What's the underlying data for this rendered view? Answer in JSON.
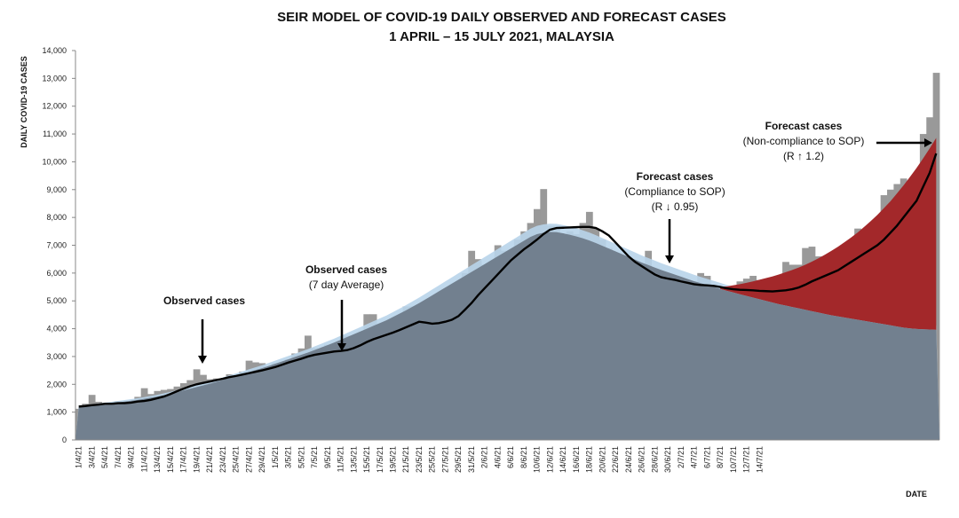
{
  "chart_data": {
    "type": "bar",
    "title": "SEIR MODEL OF COVID-19 DAILY OBSERVED AND FORECAST CASES",
    "subtitle": "1 APRIL – 15 JULY 2021, MALAYSIA",
    "ylabel": "DAILY COVID-19 CASES",
    "xlabel": "DATE",
    "ylim": [
      0,
      14000
    ],
    "grid": false,
    "yticks": [
      "0",
      "1,000",
      "2,000",
      "3,000",
      "4,000",
      "5,000",
      "6,000",
      "7,000",
      "8,000",
      "9,000",
      "10,000",
      "11,000",
      "12,000",
      "13,000",
      "14,000"
    ],
    "xticks": [
      "1/4/21",
      "3/4/21",
      "5/4/21",
      "7/4/21",
      "9/4/21",
      "11/4/21",
      "13/4/21",
      "15/4/21",
      "17/4/21",
      "19/4/21",
      "21/4/21",
      "23/4/21",
      "25/4/21",
      "27/4/21",
      "29/4/21",
      "1/5/21",
      "3/5/21",
      "5/5/21",
      "7/5/21",
      "9/5/21",
      "11/5/21",
      "13/5/21",
      "15/5/21",
      "17/5/21",
      "19/5/21",
      "21/5/21",
      "23/5/21",
      "25/5/21",
      "27/5/21",
      "29/5/21",
      "31/5/21",
      "2/6/21",
      "4/6/21",
      "6/6/21",
      "8/6/21",
      "10/6/21",
      "12/6/21",
      "14/6/21",
      "16/6/21",
      "18/6/21",
      "20/6/21",
      "22/6/21",
      "24/6/21",
      "26/6/21",
      "28/6/21",
      "30/6/21",
      "2/7/21",
      "4/7/21",
      "6/7/21",
      "8/7/21",
      "10/7/21",
      "12/7/21",
      "14/7/21"
    ],
    "series": [
      {
        "name": "Observed cases",
        "values": [
          1120,
          1300,
          1620,
          1370,
          1230,
          1100,
          1390,
          1150,
          1390,
          1550,
          1860,
          1650,
          1760,
          1800,
          1830,
          1920,
          2040,
          2150,
          2540,
          2340,
          2180,
          2210,
          2110,
          2360,
          2340,
          2460,
          2850,
          2790,
          2760,
          2550,
          2760,
          2650,
          2900,
          3110,
          3290,
          3750,
          3300,
          2990,
          3420,
          2500,
          3190,
          3750,
          3550,
          3550,
          4520,
          4520,
          3750,
          3800,
          3800,
          4050,
          4800,
          4800,
          4700,
          4100,
          4100,
          3760,
          4400,
          4800,
          5200,
          6000,
          6800,
          6500,
          6300,
          6400,
          7000,
          6800,
          6800,
          7200,
          7500,
          7800,
          8300,
          9020,
          7700,
          7700,
          7100,
          7500,
          7400,
          7800,
          8200,
          7600,
          7200,
          6900,
          6200,
          5250,
          5600,
          6100,
          5700,
          6800,
          5800,
          5300,
          4900,
          5450,
          5300,
          5150,
          5700,
          6000,
          5900,
          5500,
          5200,
          4600,
          4800,
          5700,
          5800,
          5900,
          5750,
          5600,
          5350,
          5400,
          6400,
          6300,
          6300,
          6900,
          6950,
          6600,
          6300,
          6000,
          6300,
          6400,
          6800,
          7600,
          7300,
          6700,
          7200,
          8800,
          9000,
          9200,
          9400,
          9100,
          8600,
          11000,
          11600,
          13200
        ]
      },
      {
        "name": "Observed cases (7 day Average)",
        "values": [
          1200,
          1220,
          1250,
          1270,
          1300,
          1300,
          1320,
          1320,
          1340,
          1380,
          1400,
          1440,
          1500,
          1560,
          1650,
          1750,
          1840,
          1930,
          2000,
          2050,
          2100,
          2150,
          2200,
          2260,
          2300,
          2350,
          2400,
          2450,
          2500,
          2560,
          2620,
          2700,
          2780,
          2850,
          2920,
          3000,
          3060,
          3100,
          3140,
          3180,
          3200,
          3230,
          3300,
          3400,
          3520,
          3620,
          3700,
          3780,
          3860,
          3950,
          4050,
          4150,
          4250,
          4220,
          4180,
          4200,
          4250,
          4320,
          4450,
          4680,
          4920,
          5200,
          5450,
          5700,
          5950,
          6200,
          6450,
          6650,
          6850,
          7020,
          7200,
          7400,
          7560,
          7620,
          7630,
          7640,
          7650,
          7660,
          7660,
          7620,
          7500,
          7350,
          7100,
          6850,
          6600,
          6400,
          6250,
          6100,
          5950,
          5850,
          5800,
          5760,
          5700,
          5650,
          5600,
          5570,
          5560,
          5540,
          5500,
          5450,
          5420,
          5400,
          5390,
          5380,
          5360,
          5350,
          5340,
          5360,
          5380,
          5420,
          5480,
          5580,
          5700,
          5800,
          5900,
          6000,
          6100,
          6250,
          6400,
          6550,
          6700,
          6850,
          7000,
          7200,
          7450,
          7700,
          8000,
          8300,
          8600,
          9100,
          9600,
          10300
        ]
      },
      {
        "name": "Forecast cases (Compliance to SOP)",
        "values": [
          1180,
          1200,
          1230,
          1260,
          1290,
          1320,
          1350,
          1380,
          1410,
          1440,
          1480,
          1520,
          1560,
          1610,
          1660,
          1720,
          1780,
          1840,
          1900,
          1960,
          2020,
          2090,
          2160,
          2230,
          2300,
          2370,
          2440,
          2510,
          2580,
          2660,
          2740,
          2820,
          2900,
          2980,
          3060,
          3140,
          3230,
          3320,
          3410,
          3500,
          3600,
          3700,
          3800,
          3900,
          4000,
          4100,
          4200,
          4300,
          4420,
          4540,
          4660,
          4790,
          4920,
          5060,
          5200,
          5340,
          5480,
          5620,
          5760,
          5900,
          6040,
          6180,
          6320,
          6460,
          6600,
          6740,
          6880,
          7020,
          7160,
          7300,
          7400,
          7450,
          7480,
          7470,
          7430,
          7380,
          7320,
          7250,
          7170,
          7080,
          6980,
          6880,
          6780,
          6680,
          6580,
          6480,
          6380,
          6290,
          6200,
          6110,
          6030,
          5950,
          5870,
          5790,
          5710,
          5640,
          5570,
          5500,
          5430,
          5360,
          5300,
          5240,
          5180,
          5120,
          5060,
          5000,
          4940,
          4880,
          4830,
          4780,
          4730,
          4680,
          4630,
          4580,
          4530,
          4480,
          4440,
          4400,
          4360,
          4320,
          4280,
          4240,
          4200,
          4160,
          4120,
          4080,
          4040,
          4010,
          3990,
          3980,
          3970,
          3960
        ]
      },
      {
        "name": "Forecast cases (Non-compliance to SOP)",
        "values": [
          5500,
          5520,
          5560,
          5600,
          5650,
          5700,
          5760,
          5820,
          5880,
          5950,
          6030,
          6110,
          6200,
          6300,
          6410,
          6530,
          6660,
          6800,
          6950,
          7110,
          7280,
          7460,
          7660,
          7870,
          8090,
          8330,
          8580,
          8860,
          9150,
          9460,
          9780,
          10120,
          10480,
          10860
        ]
      }
    ],
    "annotations": [
      {
        "lines": [
          "Observed cases"
        ]
      },
      {
        "lines": [
          "Observed cases",
          "(7 day Average)"
        ]
      },
      {
        "lines": [
          "Forecast cases",
          "(Compliance to SOP)",
          "(R ↓ 0.95)"
        ]
      },
      {
        "lines": [
          "Forecast cases",
          "(Non-compliance to SOP)",
          "(R ↑ 1.2)"
        ]
      }
    ],
    "colors": {
      "observed_bar": "#999999",
      "average_line": "#000000",
      "compliance_area": "#72808f",
      "compliance_light": "#b8d4ea",
      "noncompliance_area": "#a3282a",
      "noncompliance_light": "#e04848",
      "background": "#ffffff"
    }
  }
}
